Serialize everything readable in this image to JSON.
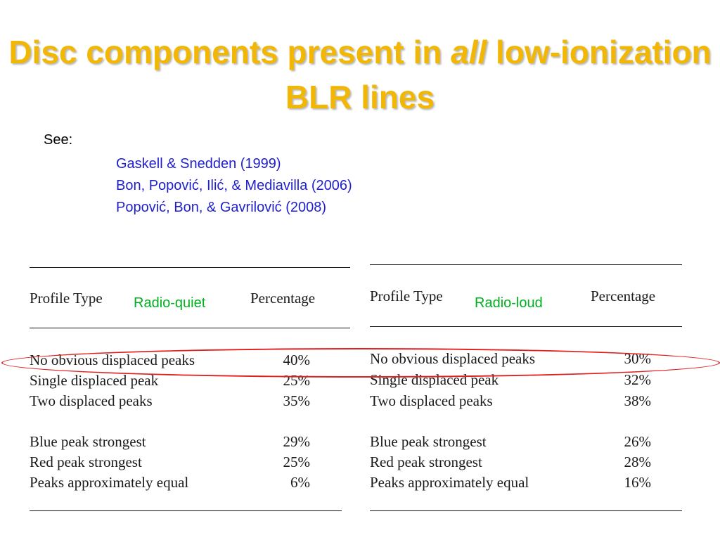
{
  "slide": {
    "title_part1": "Disc components present in ",
    "title_italic": "all",
    "title_part2": " low-ionization BLR lines",
    "see_label": "See:",
    "references": [
      "Gaskell & Snedden (1999)",
      "Bon, Popović, Ilić, & Mediavilla (2006)",
      "Popović, Bon, & Gavrilović (2008)"
    ]
  },
  "tables": {
    "left": {
      "header_profile": "Profile Type",
      "header_percentage": "Percentage",
      "tag": "Radio-quiet",
      "rows": [
        {
          "label": "No obvious displaced peaks",
          "value": "40%"
        },
        {
          "label": "Single displaced peak",
          "value": "25%"
        },
        {
          "label": "Two displaced peaks",
          "value": "35%"
        },
        {
          "label": "Blue peak strongest",
          "value": "29%"
        },
        {
          "label": "Red peak strongest",
          "value": "25%"
        },
        {
          "label": "Peaks approximately equal",
          "value": "6%"
        }
      ]
    },
    "right": {
      "header_profile": "Profile Type",
      "header_percentage": "Percentage",
      "tag": "Radio-loud",
      "rows": [
        {
          "label": "No obvious displaced peaks",
          "value": "30%"
        },
        {
          "label": "Single displaced peak",
          "value": "32%"
        },
        {
          "label": "Two displaced peaks",
          "value": "38%"
        },
        {
          "label": "Blue peak strongest",
          "value": "26%"
        },
        {
          "label": "Red peak strongest",
          "value": "28%"
        },
        {
          "label": "Peaks approximately equal",
          "value": "16%"
        }
      ]
    }
  },
  "colors": {
    "title": "#f2b705",
    "references": "#1f1fcc",
    "tag": "#00b020",
    "highlight_ellipse": "#e02020"
  }
}
